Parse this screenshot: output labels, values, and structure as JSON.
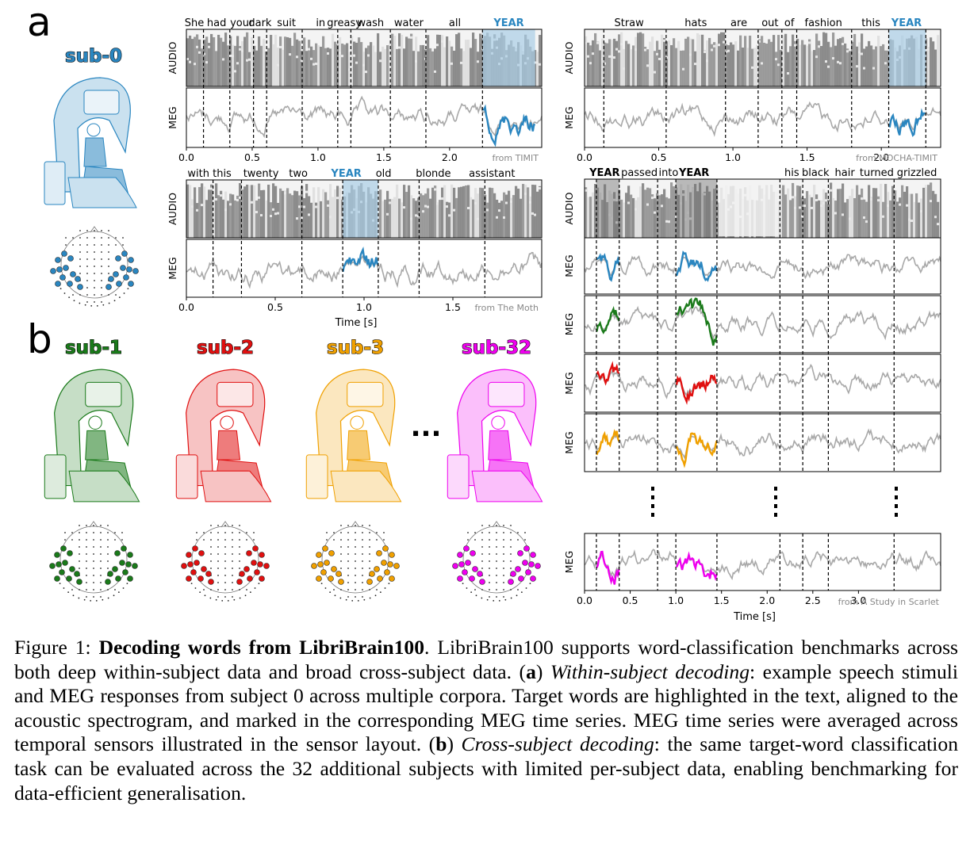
{
  "panel_a_label": "a",
  "panel_b_label": "b",
  "sub0": "sub-0",
  "ellipsis": "...",
  "subjects": [
    {
      "label": "sub-1",
      "color": "#1a7a1a"
    },
    {
      "label": "sub-2",
      "color": "#e01010"
    },
    {
      "label": "sub-3",
      "color": "#f0a000"
    },
    {
      "label": "sub-32",
      "color": "#ee00ee"
    }
  ],
  "sub0_color": "#2a86c0",
  "audio_label": "AUDIO",
  "meg_label": "MEG",
  "time_label": "Time [s]",
  "time_label2": "Time [s]",
  "chart_data": [
    {
      "type": "line",
      "panel": "a-top-left",
      "words": [
        "She",
        "had",
        "your",
        "dark",
        "suit",
        "in",
        "greasy",
        "wash",
        "water",
        "all",
        "YEAR"
      ],
      "target_word": "YEAR",
      "target_interval": [
        2.25,
        2.65
      ],
      "word_boundaries": [
        0.13,
        0.33,
        0.51,
        0.61,
        0.88,
        1.15,
        1.25,
        1.55,
        1.82,
        2.25
      ],
      "x_ticks": [
        "0.0",
        "0.5",
        "1.0",
        "1.5",
        "2.0"
      ],
      "xlim": [
        0,
        2.7
      ],
      "source": "from TIMIT"
    },
    {
      "type": "line",
      "panel": "a-top-right",
      "words": [
        "Straw",
        "hats",
        "are",
        "out",
        "of",
        "fashion",
        "this",
        "YEAR"
      ],
      "target_word": "YEAR",
      "target_interval": [
        2.05,
        2.3
      ],
      "word_boundaries": [
        0.13,
        0.55,
        0.95,
        1.17,
        1.33,
        1.43,
        1.8,
        2.05,
        2.3
      ],
      "x_ticks": [
        "0.0",
        "0.5",
        "1.0",
        "1.5",
        "2.0"
      ],
      "xlim": [
        0,
        2.4
      ],
      "source": "from MOCHA-TIMIT"
    },
    {
      "type": "line",
      "panel": "a-bottom-left",
      "words": [
        "with this",
        "twenty",
        "two",
        "YEAR",
        "old",
        "blonde",
        "assistant"
      ],
      "target_word": "YEAR",
      "target_interval": [
        0.88,
        1.08
      ],
      "word_boundaries": [
        0.15,
        0.31,
        0.65,
        0.88,
        1.08,
        1.31,
        1.68
      ],
      "x_ticks": [
        "0.0",
        "0.5",
        "1.0",
        "1.5"
      ],
      "xlim": [
        0,
        2.0
      ],
      "xlabel": "Time [s]",
      "source": "from The Moth"
    },
    {
      "type": "line",
      "panel": "b-right",
      "words": [
        "YEAR",
        "passed",
        "into",
        "YEAR",
        "his",
        "black",
        "hair",
        "turned",
        "grizzled"
      ],
      "target_word": "YEAR",
      "target_intervals": [
        [
          0.13,
          0.38
        ],
        [
          1.0,
          1.45
        ]
      ],
      "word_boundaries": [
        0.13,
        0.38,
        0.8,
        1.0,
        1.45,
        2.14,
        2.39,
        2.67,
        3.39
      ],
      "x_ticks": [
        "0.0",
        "0.5",
        "1.0",
        "1.5",
        "2.0",
        "2.5",
        "3.0"
      ],
      "xlim": [
        0,
        3.9
      ],
      "xlabel": "Time [s]",
      "source": "from A Study in Scarlet"
    }
  ],
  "caption": {
    "fig_num": "Figure 1: ",
    "title": "Decoding words from LibriBrain100",
    "text1": ". LibriBrain100 supports word-classification benchmarks across both deep within-subject data and broad cross-subject data. (",
    "a": "a",
    "text2": ") ",
    "within": "Within-subject decoding",
    "text3": ": example speech stimuli and MEG responses from subject 0 across multiple corpora. Target words are highlighted in the text, aligned to the acoustic spectrogram, and marked in the corresponding MEG time series. MEG time series were averaged across temporal sensors illustrated in the sensor layout. (",
    "b": "b",
    "text4": ") ",
    "cross": "Cross-subject decoding",
    "text5": ": the same target-word classification task can be evaluated across the 32 additional subjects with limited per-subject data, enabling benchmarking for data-efficient generalisation."
  }
}
